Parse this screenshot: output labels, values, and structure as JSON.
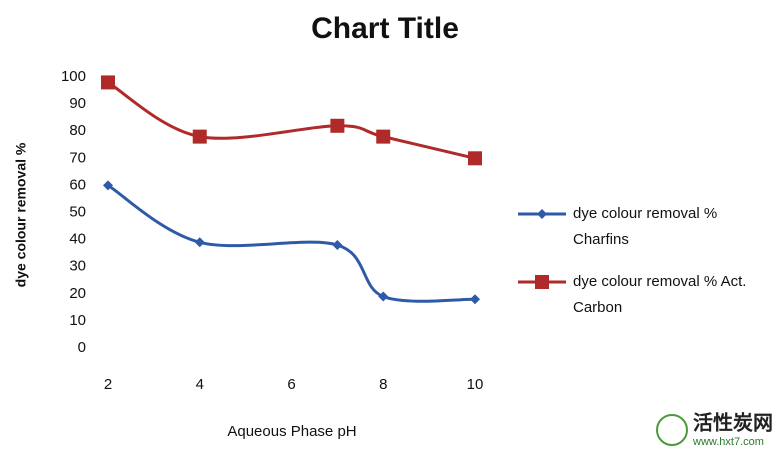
{
  "chart_data": {
    "type": "line",
    "title": "Chart Title",
    "x_label": "Aqueous Phase pH",
    "y_label": "dye colour removal %",
    "x": [
      2,
      4,
      7,
      8,
      10
    ],
    "series": [
      {
        "name": "dye colour removal % Charfins",
        "color": "#2e5aa8",
        "marker": "diamond",
        "values": [
          60,
          39,
          38,
          19,
          18
        ]
      },
      {
        "name": "dye colour removal % Act. Carbon",
        "color": "#b02a2a",
        "marker": "square",
        "values": [
          98,
          78,
          82,
          78,
          70
        ]
      }
    ],
    "xlim": [
      2,
      10
    ],
    "xticks": [
      2,
      4,
      6,
      8,
      10
    ],
    "ylim": [
      0,
      100
    ],
    "yticks": [
      0,
      10,
      20,
      30,
      40,
      50,
      60,
      70,
      80,
      90,
      100
    ],
    "grid": false,
    "legend": "right"
  },
  "watermark": {
    "name": "活性炭网",
    "url": "www.hxt7.com"
  }
}
